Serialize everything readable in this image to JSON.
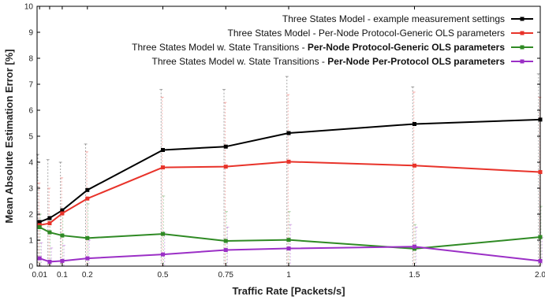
{
  "chart_data": {
    "type": "line",
    "xlabel": "Traffic Rate [Packets/s]",
    "ylabel": "Mean Absolute Estimation Error [%]",
    "xlim": [
      0.0,
      2.0
    ],
    "ylim": [
      0,
      10
    ],
    "x_ticks": [
      0.01,
      0.05,
      0.1,
      0.2,
      0.5,
      0.75,
      1,
      1.5,
      2.0
    ],
    "x_tick_labels": [
      "0.01",
      "",
      "0.1",
      "0.2",
      "0.5",
      "0.75",
      "1",
      "1.5",
      "2.0"
    ],
    "y_ticks": [
      0,
      1,
      2,
      3,
      4,
      5,
      6,
      7,
      8,
      9,
      10
    ],
    "grid": false,
    "legend_position": "top-right",
    "x": [
      0.01,
      0.05,
      0.1,
      0.2,
      0.5,
      0.75,
      1,
      1.5,
      2.0
    ],
    "series": [
      {
        "name": "Three States Model - example measurement settings",
        "name_normal": "Three States Model - example measurement settings",
        "name_bold": "",
        "color": "#000000",
        "values": [
          1.7,
          1.85,
          2.15,
          2.93,
          4.47,
          4.6,
          5.12,
          5.47,
          5.64
        ],
        "err_low": [
          0.0,
          0.0,
          0.0,
          0.0,
          0.0,
          0.0,
          0.0,
          0.0,
          0.0
        ],
        "err_high": [
          4.3,
          4.1,
          4.0,
          4.7,
          6.8,
          6.8,
          7.3,
          6.9,
          7.4
        ]
      },
      {
        "name": "Three States Model - Per-Node Protocol-Generic OLS parameters",
        "name_normal": "Three States Model - Per-Node Protocol-Generic OLS parameters",
        "name_bold": "",
        "color": "#e8332a",
        "values": [
          1.58,
          1.65,
          2.03,
          2.6,
          3.8,
          3.83,
          4.02,
          3.87,
          3.62
        ],
        "err_low": [
          0.0,
          0.0,
          0.0,
          0.0,
          0.0,
          0.0,
          0.0,
          0.0,
          0.0
        ],
        "err_high": [
          3.2,
          3.0,
          3.4,
          4.4,
          6.5,
          6.3,
          6.6,
          6.7,
          6.5
        ]
      },
      {
        "name": "Three States Model w. State Transitions - Per-Node Protocol-Generic OLS parameters",
        "name_normal": "Three States Model w. State Transitions - ",
        "name_bold": "Per-Node Protocol-Generic OLS parameters",
        "color": "#2f8a24",
        "values": [
          1.5,
          1.3,
          1.18,
          1.08,
          1.24,
          0.97,
          1.01,
          0.67,
          1.12
        ],
        "err_low": [
          0.0,
          0.0,
          0.0,
          0.0,
          0.0,
          0.0,
          0.0,
          0.0,
          0.0
        ],
        "err_high": [
          2.0,
          1.9,
          2.0,
          2.4,
          2.7,
          2.1,
          2.1,
          1.6,
          2.3
        ]
      },
      {
        "name": "Three States Model w. State Transitions - Per-Node Per-Protocol OLS parameters",
        "name_normal": "Three States Model w. State Transitions - ",
        "name_bold": "Per-Node Per-Protocol OLS parameters",
        "color": "#9b2fc6",
        "values": [
          0.3,
          0.17,
          0.2,
          0.3,
          0.45,
          0.62,
          0.68,
          0.75,
          0.2
        ],
        "err_low": [
          0.0,
          0.0,
          0.0,
          0.0,
          0.0,
          0.0,
          0.0,
          0.0,
          0.0
        ],
        "err_high": [
          0.9,
          0.7,
          0.8,
          1.0,
          1.3,
          1.5,
          1.6,
          1.5,
          1.1
        ]
      }
    ]
  }
}
